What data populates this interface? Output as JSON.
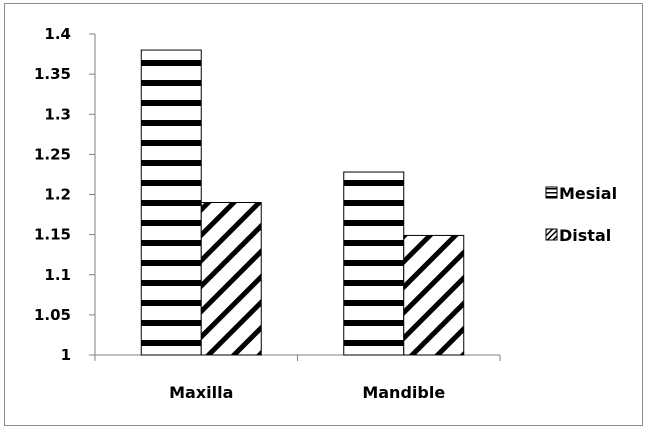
{
  "chart_data": {
    "type": "bar",
    "categories": [
      "Maxilla",
      "Mandible"
    ],
    "series": [
      {
        "name": "Mesial",
        "values": [
          1.38,
          1.228
        ],
        "pattern": "horizontal-stripes"
      },
      {
        "name": "Distal",
        "values": [
          1.19,
          1.149
        ],
        "pattern": "diagonal-stripes"
      }
    ],
    "ylim": [
      1,
      1.4
    ],
    "yticks": [
      "1",
      "1.05",
      "1.1",
      "1.15",
      "1.2",
      "1.25",
      "1.3",
      "1.35",
      "1.4"
    ],
    "ytick_values": [
      1,
      1.05,
      1.1,
      1.15,
      1.2,
      1.25,
      1.3,
      1.35,
      1.4
    ],
    "title": "",
    "xlabel": "",
    "ylabel": "",
    "grid": false,
    "legend_position": "right",
    "colors": {
      "stroke": "#000000",
      "fill": "#ffffff",
      "axis": "#808080"
    }
  }
}
